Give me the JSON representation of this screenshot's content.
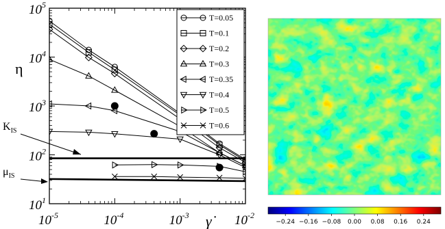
{
  "chart_data": [
    {
      "type": "line",
      "title": "",
      "xlabel": "γ̇",
      "ylabel": "η",
      "xscale": "log",
      "yscale": "log",
      "xlim": [
        1e-05,
        0.01
      ],
      "ylim": [
        10,
        100000
      ],
      "xticks": [
        {
          "base": "10",
          "exp": "-5",
          "value": 1e-05
        },
        {
          "base": "10",
          "exp": "-4",
          "value": 0.0001
        },
        {
          "base": "10",
          "exp": "-3",
          "value": 0.001
        },
        {
          "base": "10",
          "exp": "-2",
          "value": 0.01
        }
      ],
      "yticks": [
        {
          "base": "10",
          "exp": "1",
          "value": 10
        },
        {
          "base": "10",
          "exp": "2",
          "value": 100
        },
        {
          "base": "10",
          "exp": "3",
          "value": 1000
        },
        {
          "base": "10",
          "exp": "4",
          "value": 10000
        },
        {
          "base": "10",
          "exp": "5",
          "value": 100000
        }
      ],
      "legend_position": "top-right",
      "series": [
        {
          "name": "T=0.05",
          "marker": "circle",
          "x": [
            1e-05,
            4e-05,
            0.0001,
            0.001,
            0.004,
            0.01
          ],
          "y": [
            55000,
            14000,
            6300,
            700,
            170,
            80
          ]
        },
        {
          "name": "T=0.1",
          "marker": "square",
          "x": [
            1e-05,
            4e-05,
            0.0001,
            0.001,
            0.004,
            0.01
          ],
          "y": [
            47000,
            12500,
            5500,
            650,
            160,
            75
          ]
        },
        {
          "name": "T=0.2",
          "marker": "diamond",
          "x": [
            1e-05,
            4e-05,
            0.0001,
            0.001,
            0.004,
            0.01
          ],
          "y": [
            37000,
            9800,
            4600,
            540,
            140,
            70
          ]
        },
        {
          "name": "T=0.3",
          "marker": "triangle-up",
          "x": [
            1e-05,
            4e-05,
            0.0001,
            0.001,
            0.004,
            0.01
          ],
          "y": [
            9000,
            4100,
            2100,
            380,
            110,
            60
          ]
        },
        {
          "name": "T=0.35",
          "marker": "triangle-left",
          "x": [
            1e-05,
            4e-05,
            0.0001,
            0.001,
            0.004,
            0.01
          ],
          "y": [
            1100,
            1000,
            800,
            300,
            110,
            60
          ]
        },
        {
          "name": "T=0.4",
          "marker": "triangle-down",
          "x": [
            1e-05,
            4e-05,
            0.0001,
            0.001,
            0.004,
            0.01
          ],
          "y": [
            300,
            290,
            270,
            210,
            100,
            55
          ]
        },
        {
          "name": "T=0.5",
          "marker": "triangle-right",
          "x": [
            0.0001,
            0.0004,
            0.001,
            0.004,
            0.01
          ],
          "y": [
            62,
            63,
            62,
            58,
            45
          ]
        },
        {
          "name": "T=0.6",
          "marker": "x",
          "x": [
            0.0001,
            0.0004,
            0.001,
            0.004,
            0.01
          ],
          "y": [
            36,
            36,
            35,
            34,
            33
          ]
        }
      ],
      "filled_points": [
        {
          "x": 0.0001,
          "y": 1000
        },
        {
          "x": 0.0004,
          "y": 270
        },
        {
          "x": 0.004,
          "y": 55
        }
      ],
      "reference_lines": [
        {
          "label_base": "K",
          "label_sub": "IS",
          "y": 85
        },
        {
          "label_base": "μ",
          "label_sub": "IS",
          "y_start": 32,
          "y_end": 29
        }
      ]
    },
    {
      "type": "heatmap",
      "colormap": [
        "#00007f",
        "#0000ff",
        "#007fff",
        "#00ffff",
        "#7fff7f",
        "#ffff00",
        "#ff7f00",
        "#ff0000",
        "#7f0000"
      ],
      "colorbar_ticks": [
        "−0.24",
        "−0.16",
        "−0.08",
        "0.00",
        "0.08",
        "0.16",
        "0.24"
      ],
      "value_range": [
        -0.3,
        0.3
      ]
    }
  ]
}
